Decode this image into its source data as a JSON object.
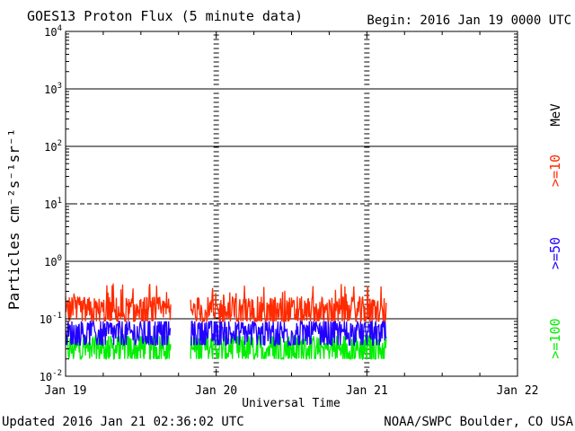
{
  "chart_data": {
    "type": "line",
    "title": "GOES13 Proton Flux (5 minute data)",
    "begin": "Begin: 2016 Jan 19 0000 UTC",
    "ylabel": "Particles cm⁻²s⁻¹sr⁻¹",
    "xlabel": "Universal Time",
    "y_scale": "log",
    "ylim": [
      0.01,
      10000
    ],
    "y_ticks": [
      {
        "base": "10",
        "exp": "4",
        "value": 10000
      },
      {
        "base": "10",
        "exp": "3",
        "value": 1000
      },
      {
        "base": "10",
        "exp": "2",
        "value": 100
      },
      {
        "base": "10",
        "exp": "1",
        "value": 10
      },
      {
        "base": "10",
        "exp": "0",
        "value": 1
      },
      {
        "base": "10",
        "exp": "-1",
        "value": 0.1
      },
      {
        "base": "10",
        "exp": "-2",
        "value": 0.01
      }
    ],
    "x_range_days": [
      0,
      3
    ],
    "x_ticks": [
      {
        "label": "Jan 19",
        "day": 0
      },
      {
        "label": "Jan 20",
        "day": 1
      },
      {
        "label": "Jan 21",
        "day": 2
      },
      {
        "label": "Jan 22",
        "day": 3
      }
    ],
    "threshold_lines": [
      {
        "value": 10,
        "style": "dashed"
      },
      {
        "value": 1000,
        "style": "solid"
      },
      {
        "value": 100,
        "style": "solid"
      },
      {
        "value": 1,
        "style": "solid"
      },
      {
        "value": 0.1,
        "style": "solid"
      }
    ],
    "series": [
      {
        "name": ">=10",
        "color": "#ff2a00",
        "typical": 0.13,
        "min": 0.09,
        "max": 0.42,
        "coverage_days": [
          [
            0,
            0.7
          ],
          [
            0.83,
            2.13
          ]
        ]
      },
      {
        "name": ">=50",
        "color": "#2200ff",
        "typical": 0.055,
        "min": 0.035,
        "max": 0.09,
        "coverage_days": [
          [
            0,
            0.7
          ],
          [
            0.83,
            2.13
          ]
        ]
      },
      {
        "name": ">=100",
        "color": "#00ee00",
        "typical": 0.03,
        "min": 0.02,
        "max": 0.05,
        "coverage_days": [
          [
            0,
            0.7
          ],
          [
            0.83,
            2.13
          ]
        ]
      }
    ],
    "legend_unit": "MeV",
    "grid": false,
    "legend_position": "right-vertical"
  },
  "footer": {
    "updated": "Updated 2016 Jan 21 02:36:02 UTC",
    "credit": "NOAA/SWPC Boulder, CO USA"
  }
}
